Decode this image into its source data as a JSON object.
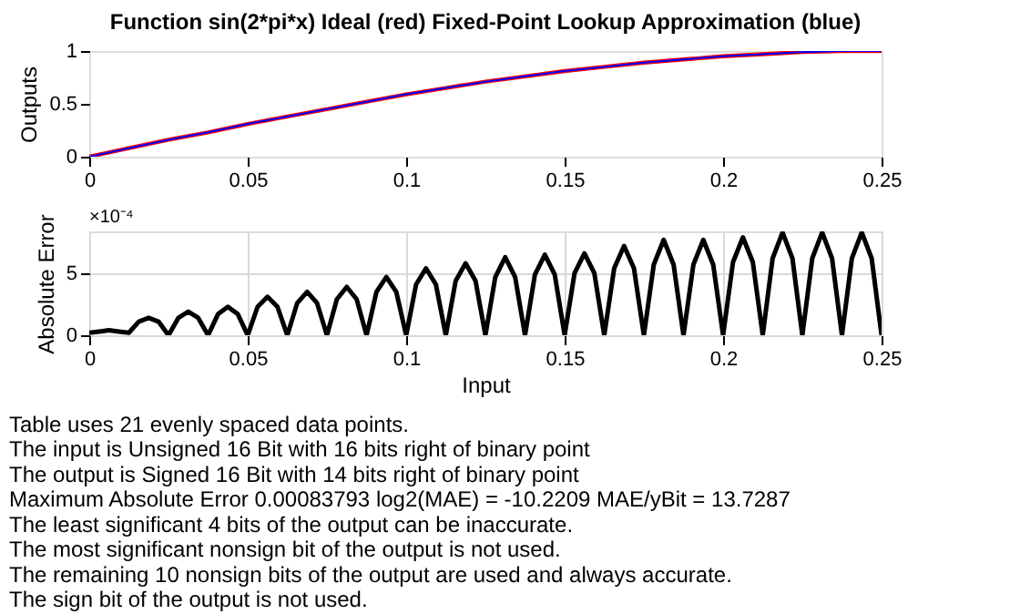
{
  "chart_data": [
    {
      "type": "line",
      "title": "Function sin(2*pi*x)     Ideal (red)   Fixed-Point Lookup Approximation (blue)",
      "ylabel": "Outputs",
      "x": [
        0,
        0.0125,
        0.025,
        0.0375,
        0.05,
        0.0625,
        0.075,
        0.0875,
        0.1,
        0.1125,
        0.125,
        0.1375,
        0.15,
        0.1625,
        0.175,
        0.1875,
        0.2,
        0.2125,
        0.225,
        0.2375,
        0.25
      ],
      "series": [
        {
          "color": "#ff0000",
          "values": [
            0,
            0.08,
            0.16,
            0.23,
            0.31,
            0.38,
            0.45,
            0.52,
            0.59,
            0.65,
            0.71,
            0.76,
            0.81,
            0.85,
            0.89,
            0.92,
            0.95,
            0.97,
            0.99,
            1,
            1
          ]
        },
        {
          "color": "#0000ff",
          "values": [
            0,
            0.08,
            0.16,
            0.23,
            0.31,
            0.38,
            0.45,
            0.52,
            0.59,
            0.65,
            0.71,
            0.76,
            0.81,
            0.85,
            0.89,
            0.92,
            0.95,
            0.97,
            0.99,
            1,
            1
          ]
        }
      ],
      "xlim": [
        0,
        0.25
      ],
      "xticks": [
        0,
        0.05,
        0.1,
        0.15,
        0.2,
        0.25
      ],
      "ylim": [
        0,
        1
      ],
      "yticks": [
        0,
        0.5,
        1
      ],
      "grid": false,
      "legend": false,
      "line_style": "solid"
    },
    {
      "type": "line",
      "xlabel": "Input",
      "ylabel": "Absolute Error",
      "annotations": [
        "×10⁻⁴"
      ],
      "x": [
        0,
        0.003125,
        0.00625,
        0.009375,
        0.0125,
        0.015625,
        0.01875,
        0.021875,
        0.025,
        0.028125,
        0.03125,
        0.034375,
        0.0375,
        0.040625,
        0.04375,
        0.046875,
        0.05,
        0.053125,
        0.05625,
        0.059375,
        0.0625,
        0.065625,
        0.06875,
        0.071875,
        0.075,
        0.078125,
        0.08125,
        0.084375,
        0.0875,
        0.090625,
        0.09375,
        0.096875,
        0.1,
        0.103125,
        0.10625,
        0.109375,
        0.1125,
        0.115625,
        0.11875,
        0.121875,
        0.125,
        0.128125,
        0.13125,
        0.134375,
        0.1375,
        0.140625,
        0.14375,
        0.146875,
        0.15,
        0.153125,
        0.15625,
        0.159375,
        0.1625,
        0.165625,
        0.16875,
        0.171875,
        0.175,
        0.178125,
        0.18125,
        0.184375,
        0.1875,
        0.190625,
        0.19375,
        0.196875,
        0.2,
        0.203125,
        0.20625,
        0.209375,
        0.2125,
        0.215625,
        0.21875,
        0.221875,
        0.225,
        0.228125,
        0.23125,
        0.234375,
        0.2375,
        0.240625,
        0.24375,
        0.246875,
        0.25
      ],
      "series": [
        {
          "color": "#000000",
          "values": [
            0.2,
            0.3,
            0.4,
            0.3,
            0.2,
            1.1,
            1.4,
            1.1,
            0,
            1.4,
            1.9,
            1.4,
            0,
            1.7,
            2.3,
            1.7,
            0,
            2.3,
            3.1,
            2.3,
            0,
            2.6,
            3.5,
            2.6,
            0,
            2.9,
            3.9,
            2.9,
            0,
            3.5,
            4.7,
            3.5,
            0,
            4.1,
            5.4,
            4.1,
            0,
            4.4,
            5.8,
            4.4,
            0,
            4.7,
            6.3,
            4.7,
            0,
            4.9,
            6.5,
            4.9,
            0,
            5,
            6.6,
            5,
            0,
            5.4,
            7.2,
            5.4,
            0,
            5.7,
            7.7,
            5.7,
            0,
            5.7,
            7.7,
            5.7,
            0,
            5.9,
            7.9,
            5.9,
            0,
            6.2,
            8.3,
            6.2,
            0,
            6.2,
            8.3,
            6.2,
            0,
            6.2,
            8.3,
            6.2,
            0
          ]
        }
      ],
      "xlim": [
        0,
        0.25
      ],
      "xticks": [
        0,
        0.05,
        0.1,
        0.15,
        0.2,
        0.25
      ],
      "ylim": [
        0,
        8.38
      ],
      "yticks": [
        0,
        5
      ],
      "grid": true,
      "legend": false,
      "line_style": "solid"
    },
    {
      "type": "other",
      "annotations": [
        "Table uses 21 evenly spaced data points.",
        "The input is Unsigned 16 Bit with 16 bits right of binary point",
        "The output is Signed 16 Bit with 14 bits right of binary point",
        "Maximum Absolute Error  0.00083793   log2(MAE) = -10.2209   MAE/yBit = 13.7287",
        "The least significant 4 bits of the output can be inaccurate.",
        "The most significant nonsign bit of the output is not used.",
        "The remaining 10 nonsign bits of the output are used and always accurate.",
        "The sign bit of the output is not used."
      ]
    }
  ]
}
